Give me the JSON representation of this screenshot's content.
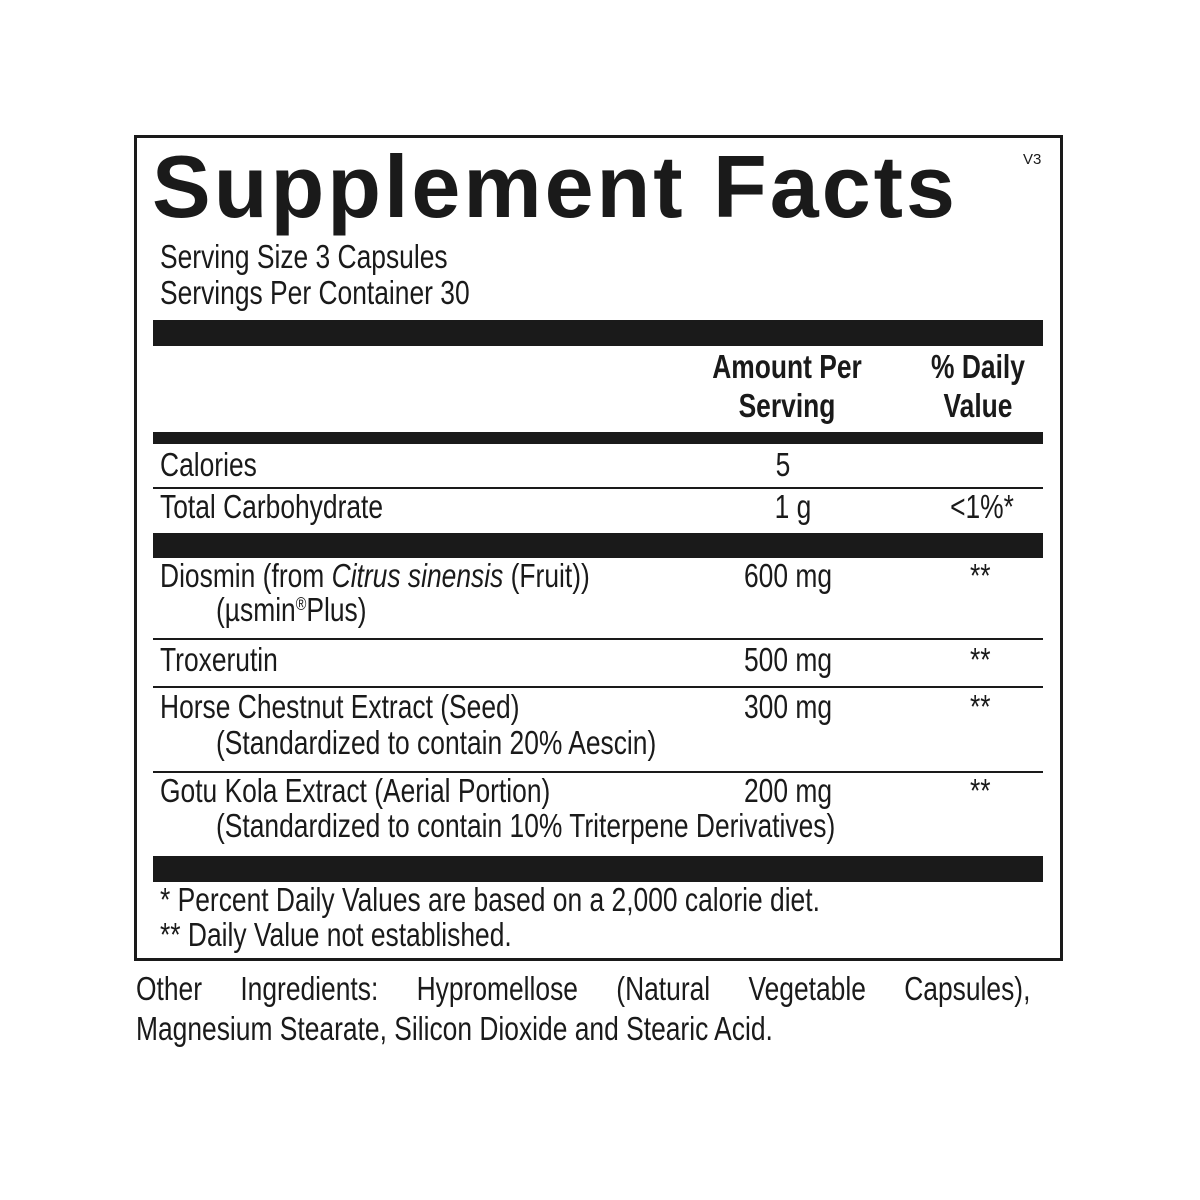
{
  "title": "Supplement Facts",
  "version": "V3",
  "serving_size": "Serving Size 3 Capsules",
  "servings_per_container": "Servings Per Container 30",
  "headers": {
    "amount_line1": "Amount Per",
    "amount_line2": "Serving",
    "dv_line1": "% Daily",
    "dv_line2": "Value"
  },
  "rows": [
    {
      "name": "Calories",
      "amount": "5",
      "dv": ""
    },
    {
      "name": "Total Carbohydrate",
      "amount": "1 g",
      "dv": "<1%*"
    }
  ],
  "ingredients": [
    {
      "name_pre": "Diosmin (from ",
      "name_italic": "Citrus sinensis",
      "name_post": " (Fruit))",
      "sub_pre": "(µsmin",
      "sub_sup": "®",
      "sub_post": "Plus)",
      "amount": "600 mg",
      "dv": "**"
    },
    {
      "name": "Troxerutin",
      "amount": "500 mg",
      "dv": "**"
    },
    {
      "name": "Horse Chestnut Extract (Seed)",
      "sub": "(Standardized to contain 20% Aescin)",
      "amount": "300 mg",
      "dv": "**"
    },
    {
      "name": "Gotu Kola Extract (Aerial Portion)",
      "sub": "(Standardized to contain 10% Triterpene Derivatives)",
      "amount": "200 mg",
      "dv": "**"
    }
  ],
  "footnotes": [
    "* Percent Daily Values are based on a 2,000 calorie diet.",
    "** Daily Value not established."
  ],
  "other_ingredients": {
    "line1": "Other Ingredients: Hypromellose (Natural Vegetable Capsules),",
    "line2": "Magnesium Stearate, Silicon Dioxide and Stearic Acid."
  }
}
